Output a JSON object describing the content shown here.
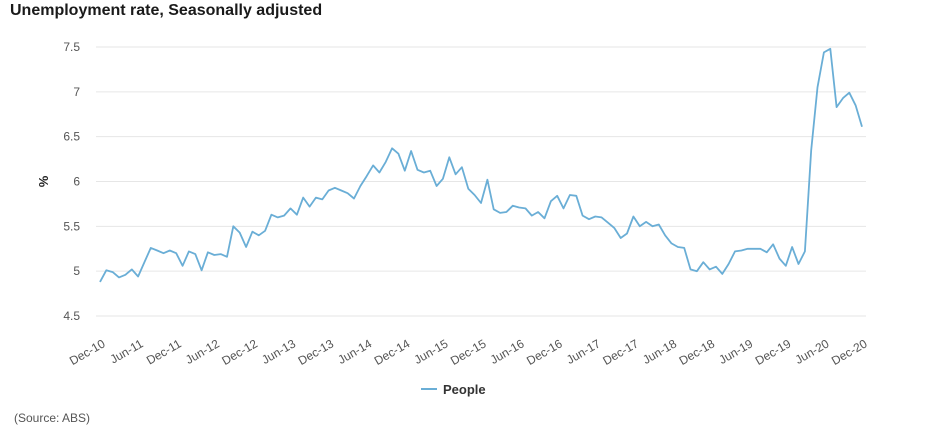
{
  "title": "Unemployment rate, Seasonally adjusted",
  "source": "(Source: ABS)",
  "colors": {
    "series": "#6aaed6",
    "grid": "#e6e6e6",
    "axis_text": "#555555"
  },
  "chart_data": {
    "type": "line",
    "title": "Unemployment rate, Seasonally adjusted",
    "xlabel": "",
    "ylabel": "%",
    "ylim": [
      4.5,
      7.5
    ],
    "yticks": [
      "4.5",
      "5",
      "5.5",
      "6",
      "6.5",
      "7",
      "7.5"
    ],
    "grid": true,
    "legend_position": "bottom-center",
    "x_tick_labels": [
      "Dec-10",
      "Jun-11",
      "Dec-11",
      "Jun-12",
      "Dec-12",
      "Jun-13",
      "Dec-13",
      "Jun-14",
      "Dec-14",
      "Jun-15",
      "Dec-15",
      "Jun-16",
      "Dec-16",
      "Jun-17",
      "Dec-17",
      "Jun-18",
      "Dec-18",
      "Jun-19",
      "Dec-19",
      "Jun-20",
      "Dec-20"
    ],
    "series": [
      {
        "name": "People",
        "x": [
          "Dec-10",
          "Jan-11",
          "Feb-11",
          "Mar-11",
          "Apr-11",
          "May-11",
          "Jun-11",
          "Jul-11",
          "Aug-11",
          "Sep-11",
          "Oct-11",
          "Nov-11",
          "Dec-11",
          "Jan-12",
          "Feb-12",
          "Mar-12",
          "Apr-12",
          "May-12",
          "Jun-12",
          "Jul-12",
          "Aug-12",
          "Sep-12",
          "Oct-12",
          "Nov-12",
          "Dec-12",
          "Jan-13",
          "Feb-13",
          "Mar-13",
          "Apr-13",
          "May-13",
          "Jun-13",
          "Jul-13",
          "Aug-13",
          "Sep-13",
          "Oct-13",
          "Nov-13",
          "Dec-13",
          "Jan-14",
          "Feb-14",
          "Mar-14",
          "Apr-14",
          "May-14",
          "Jun-14",
          "Jul-14",
          "Aug-14",
          "Sep-14",
          "Oct-14",
          "Nov-14",
          "Dec-14",
          "Jan-15",
          "Feb-15",
          "Mar-15",
          "Apr-15",
          "May-15",
          "Jun-15",
          "Jul-15",
          "Aug-15",
          "Sep-15",
          "Oct-15",
          "Nov-15",
          "Dec-15",
          "Jan-16",
          "Feb-16",
          "Mar-16",
          "Apr-16",
          "May-16",
          "Jun-16",
          "Jul-16",
          "Aug-16",
          "Sep-16",
          "Oct-16",
          "Nov-16",
          "Dec-16",
          "Jan-17",
          "Feb-17",
          "Mar-17",
          "Apr-17",
          "May-17",
          "Jun-17",
          "Jul-17",
          "Aug-17",
          "Sep-17",
          "Oct-17",
          "Nov-17",
          "Dec-17",
          "Jan-18",
          "Feb-18",
          "Mar-18",
          "Apr-18",
          "May-18",
          "Jun-18",
          "Jul-18",
          "Aug-18",
          "Sep-18",
          "Oct-18",
          "Nov-18",
          "Dec-18",
          "Jan-19",
          "Feb-19",
          "Mar-19",
          "Apr-19",
          "May-19",
          "Jun-19",
          "Jul-19",
          "Aug-19",
          "Sep-19",
          "Oct-19",
          "Nov-19",
          "Dec-19",
          "Jan-20",
          "Feb-20",
          "Mar-20",
          "Apr-20",
          "May-20",
          "Jun-20",
          "Jul-20",
          "Aug-20",
          "Sep-20",
          "Oct-20",
          "Nov-20",
          "Dec-20"
        ],
        "values": [
          4.88,
          5.01,
          4.99,
          4.93,
          4.96,
          5.02,
          4.94,
          5.1,
          5.26,
          5.23,
          5.2,
          5.23,
          5.2,
          5.06,
          5.22,
          5.19,
          5.01,
          5.21,
          5.18,
          5.19,
          5.16,
          5.5,
          5.43,
          5.27,
          5.44,
          5.4,
          5.45,
          5.63,
          5.6,
          5.62,
          5.7,
          5.63,
          5.82,
          5.72,
          5.82,
          5.8,
          5.9,
          5.93,
          5.9,
          5.87,
          5.81,
          5.95,
          6.06,
          6.18,
          6.1,
          6.22,
          6.37,
          6.31,
          6.12,
          6.34,
          6.13,
          6.1,
          6.12,
          5.95,
          6.03,
          6.27,
          6.08,
          6.16,
          5.92,
          5.85,
          5.76,
          6.02,
          5.69,
          5.65,
          5.66,
          5.73,
          5.71,
          5.7,
          5.62,
          5.66,
          5.59,
          5.78,
          5.84,
          5.7,
          5.85,
          5.84,
          5.62,
          5.58,
          5.61,
          5.6,
          5.54,
          5.48,
          5.37,
          5.42,
          5.61,
          5.5,
          5.55,
          5.5,
          5.52,
          5.4,
          5.31,
          5.27,
          5.26,
          5.02,
          5.0,
          5.1,
          5.02,
          5.05,
          4.97,
          5.08,
          5.22,
          5.23,
          5.25,
          5.25,
          5.25,
          5.21,
          5.3,
          5.14,
          5.06,
          5.27,
          5.08,
          5.22,
          6.35,
          7.05,
          7.44,
          7.48,
          6.83,
          6.93,
          6.99,
          6.85,
          6.61
        ]
      }
    ]
  }
}
